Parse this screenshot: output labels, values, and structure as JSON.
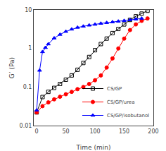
{
  "chart_data": {
    "type": "line",
    "xlabel": "Time (min)",
    "ylabel": "G’ (Pa)",
    "log": "y",
    "xlim": [
      -5,
      200
    ],
    "ylim": [
      0.01,
      10
    ],
    "xticks": [
      0,
      50,
      100,
      150,
      200
    ],
    "yticks": [
      0.01,
      0.1,
      1,
      10
    ],
    "grid": false,
    "legend": "lower right",
    "series": [
      {
        "name": "CS/GP",
        "color": "#000000",
        "marker": "square-open",
        "x": [
          0,
          10,
          20,
          30,
          40,
          50,
          60,
          70,
          80,
          90,
          100,
          110,
          120,
          130,
          140,
          150,
          160,
          170,
          180,
          190
        ],
        "values": [
          0.022,
          0.055,
          0.075,
          0.095,
          0.12,
          0.155,
          0.2,
          0.28,
          0.42,
          0.6,
          0.9,
          1.3,
          1.8,
          2.5,
          3.2,
          4.2,
          5.5,
          6.8,
          8.0,
          9.5
        ]
      },
      {
        "name": "CS/GP/urea",
        "color": "#ff0000",
        "marker": "circle",
        "x": [
          0,
          10,
          20,
          30,
          40,
          50,
          60,
          70,
          80,
          90,
          100,
          110,
          120,
          130,
          140,
          150,
          160,
          170,
          180,
          190
        ],
        "values": [
          0.022,
          0.032,
          0.04,
          0.048,
          0.056,
          0.065,
          0.075,
          0.088,
          0.1,
          0.12,
          0.15,
          0.2,
          0.32,
          0.55,
          1.0,
          1.8,
          3.0,
          4.2,
          5.2,
          6.0
        ]
      },
      {
        "name": "CS/GP/isobutanol",
        "color": "#0000ff",
        "marker": "triangle-up",
        "x": [
          0,
          5,
          10,
          15,
          20,
          30,
          40,
          50,
          60,
          70,
          80,
          90,
          100,
          110,
          120,
          130,
          140,
          150,
          160,
          170,
          180
        ],
        "values": [
          0.025,
          0.27,
          0.82,
          1.05,
          1.3,
          1.85,
          2.3,
          2.75,
          3.15,
          3.5,
          3.75,
          4.0,
          4.2,
          4.45,
          4.65,
          4.85,
          5.05,
          5.25,
          5.5,
          5.75,
          6.0
        ]
      }
    ]
  }
}
